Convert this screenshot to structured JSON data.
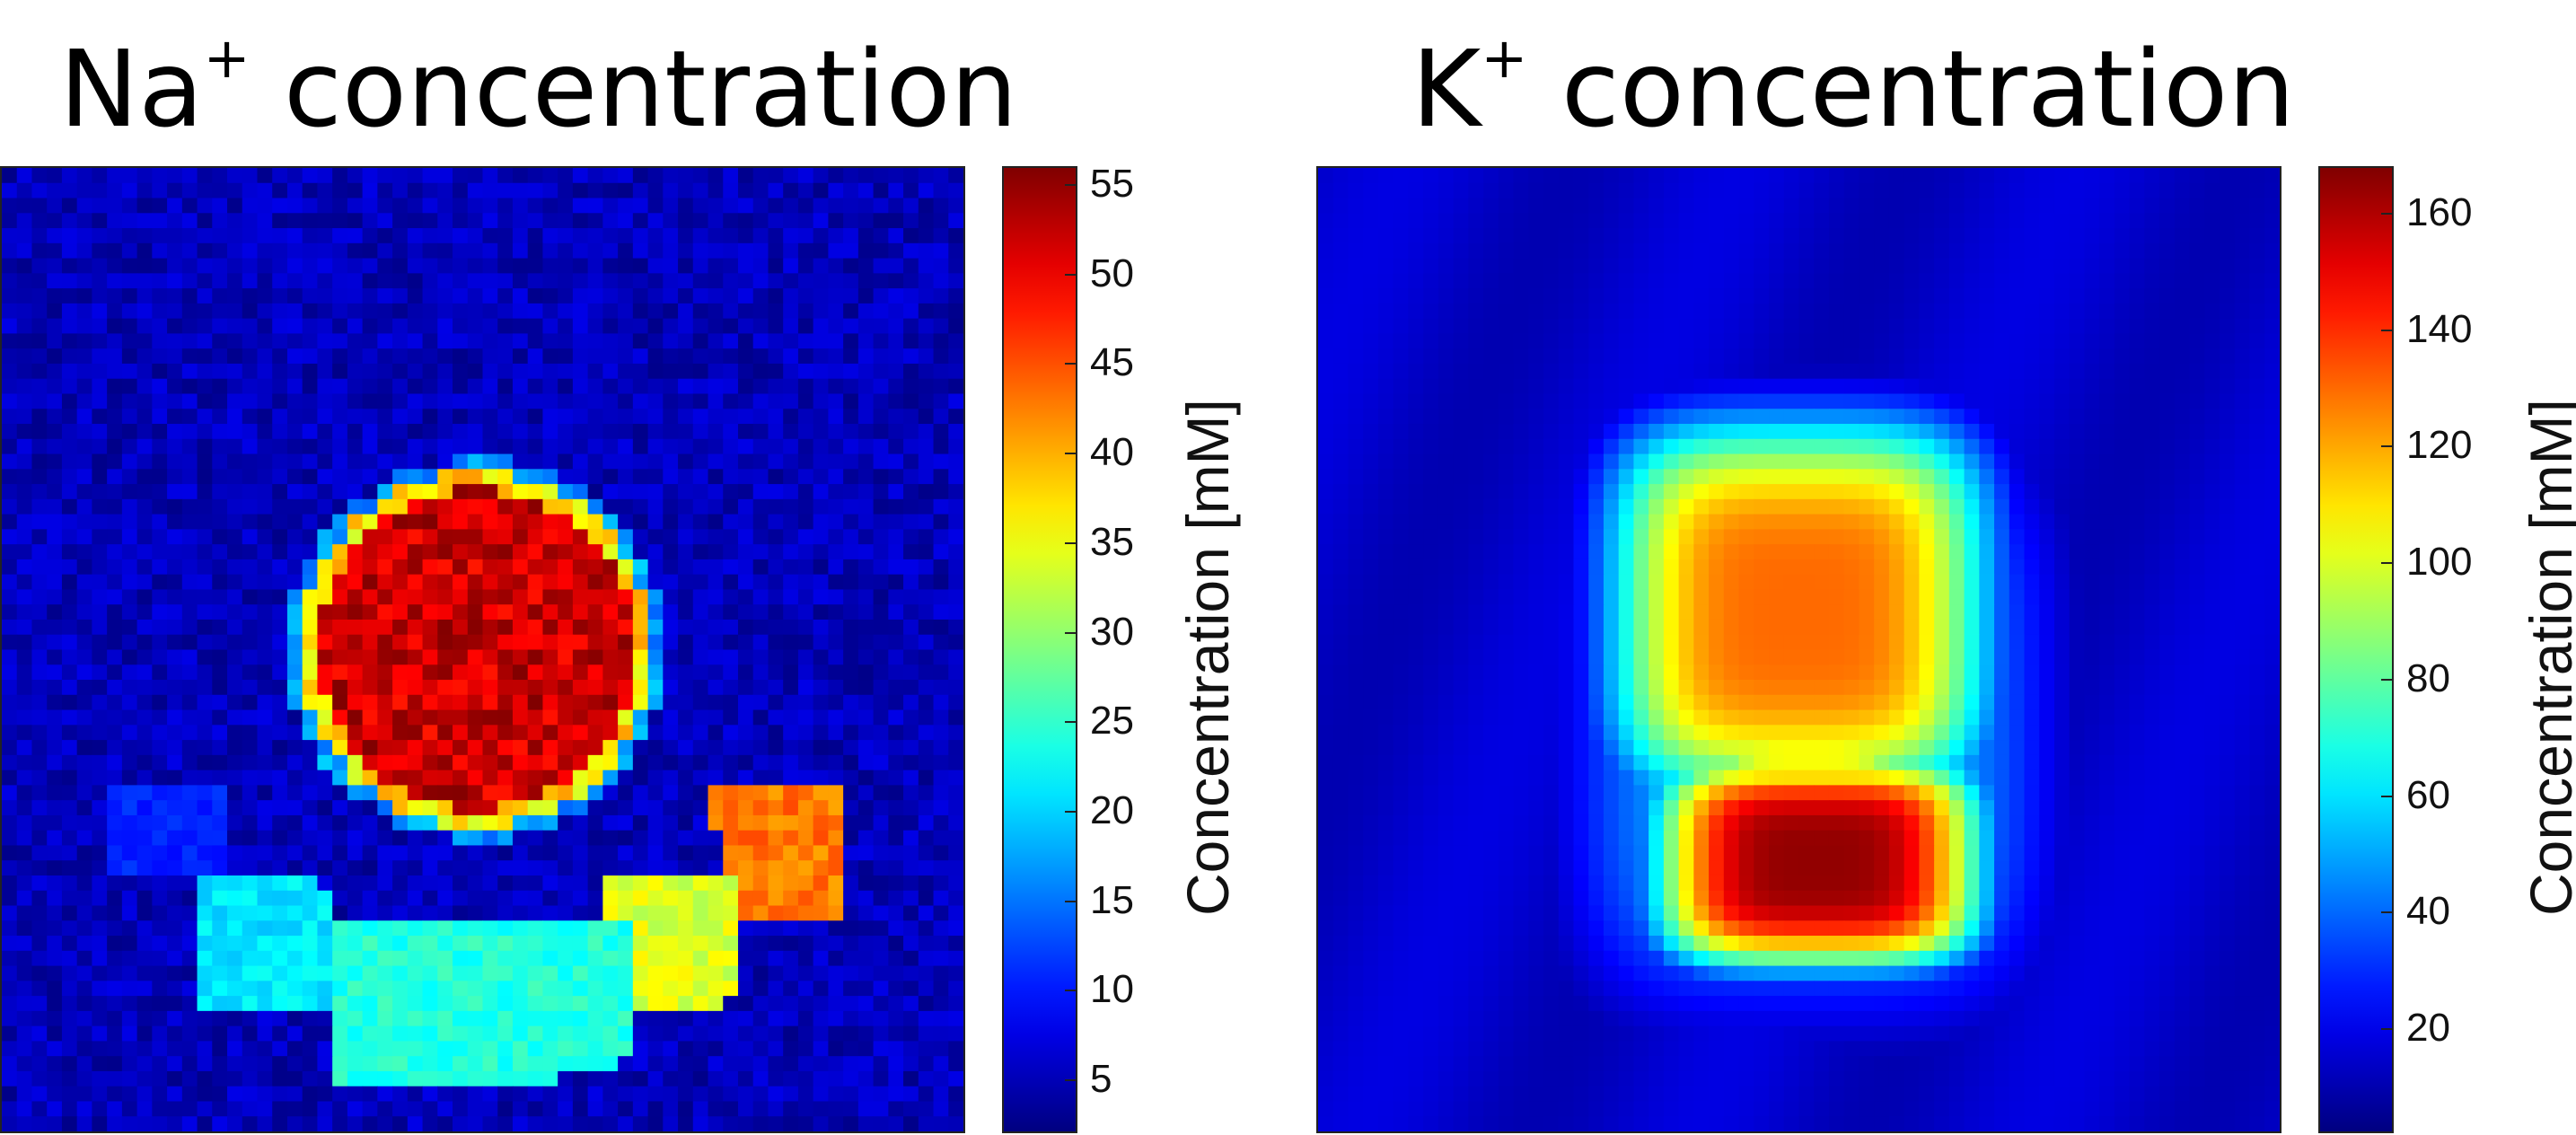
{
  "chart_data": [
    {
      "type": "heatmap",
      "title_main": "Na",
      "title_sup": "+",
      "title_rest": " concentration",
      "colorbar_label": "Concentration [mM]",
      "colorbar_ticks": [
        "5",
        "10",
        "15",
        "20",
        "25",
        "30",
        "35",
        "40",
        "45",
        "50",
        "55"
      ],
      "colorbar_range": [
        2,
        56
      ],
      "colormap": "jet",
      "regions": [
        {
          "shape": "circle",
          "approx_value": 52
        },
        {
          "shape": "segment-left",
          "approx_value": 21
        },
        {
          "shape": "segment-center",
          "approx_value": 24
        },
        {
          "shape": "segment-right",
          "approx_value": 34
        },
        {
          "shape": "segment-tip",
          "approx_value": 43
        },
        {
          "shape": "segment-far-left",
          "approx_value": 9
        }
      ],
      "background_value": 5
    },
    {
      "type": "heatmap",
      "title_main": "K",
      "title_sup": "+",
      "title_rest": " concentration",
      "colorbar_label": "Concentration [mM]",
      "colorbar_ticks": [
        "20",
        "40",
        "60",
        "80",
        "100",
        "120",
        "140",
        "160"
      ],
      "colorbar_range": [
        2,
        168
      ],
      "colormap": "jet",
      "regions": [
        {
          "shape": "upper-blob",
          "approx_value": 130
        },
        {
          "shape": "lower-blob",
          "approx_value": 165
        }
      ],
      "background_value": 10
    }
  ]
}
